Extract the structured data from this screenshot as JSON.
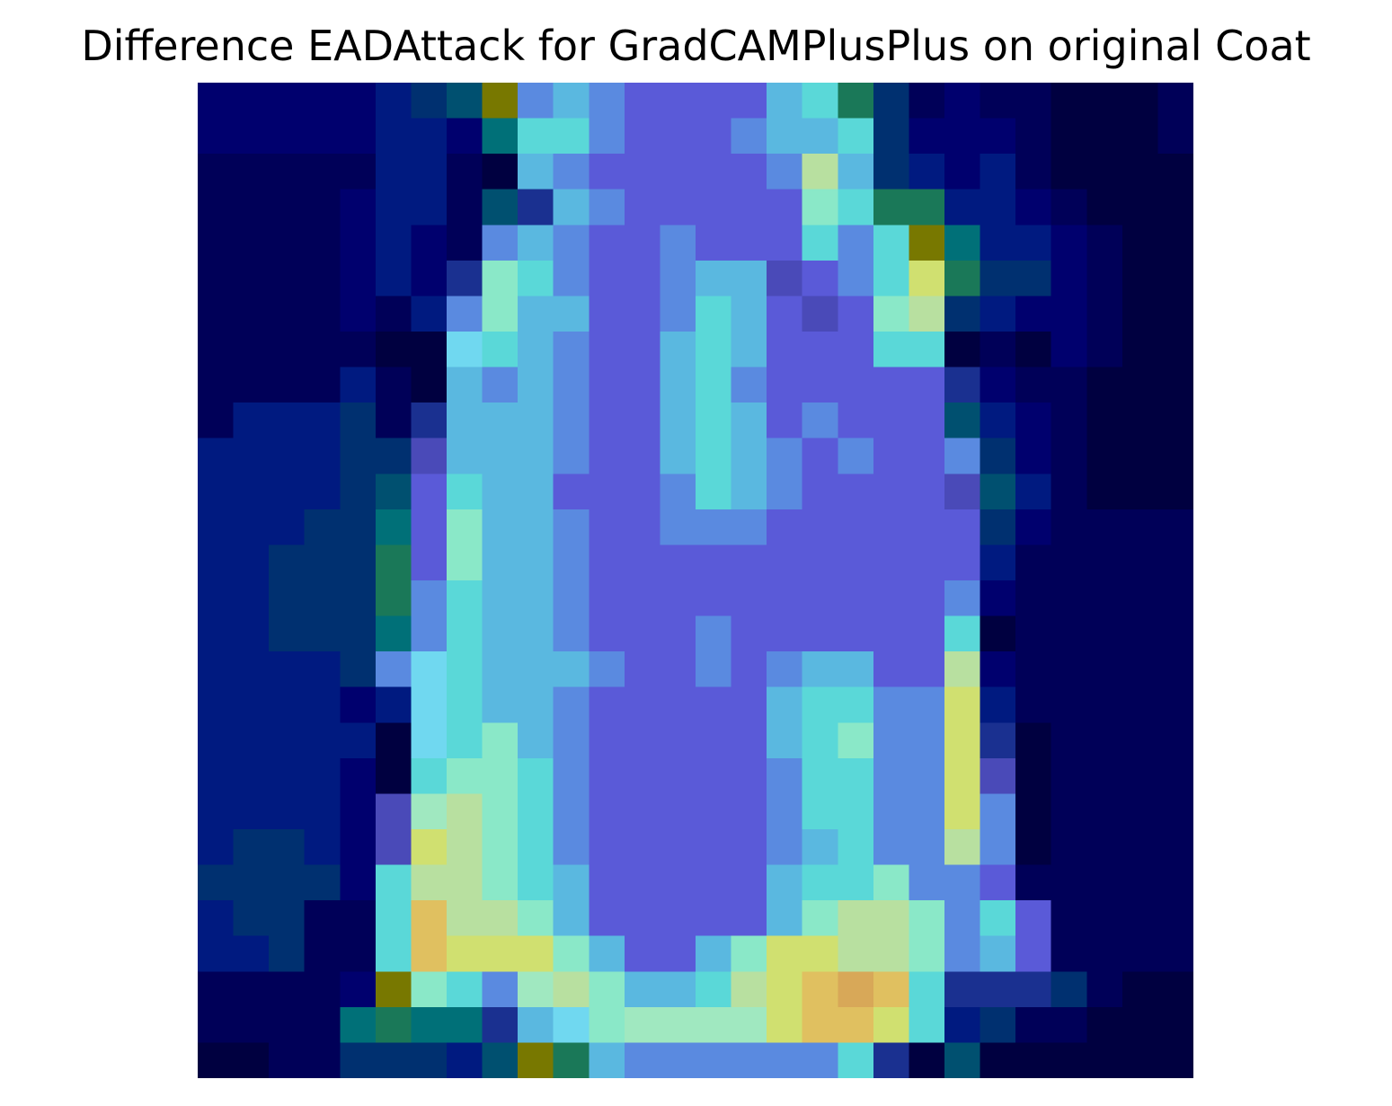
{
  "chart_data": {
    "type": "heatmap",
    "title": "Difference EADAttack for GradCAMPlusPlus on original Coat",
    "rows": 28,
    "cols": 28,
    "axes_visible": false,
    "colormap": "jet (alpha blended over grayscale image)",
    "palette": {
      "deep_navy": "#000048",
      "navy": "#00127e",
      "blue": "#1a3090",
      "indigo": "#5a5ad8",
      "periwinkle": "#5a8ae0",
      "sky": "#5ab8e0",
      "cyan": "#5ad8d8",
      "mint": "#8ae8c8",
      "pale_green": "#b8e0a0",
      "yellow_green": "#d0e070",
      "gold": "#e0c060",
      "orange": "#d8a858"
    }
  }
}
